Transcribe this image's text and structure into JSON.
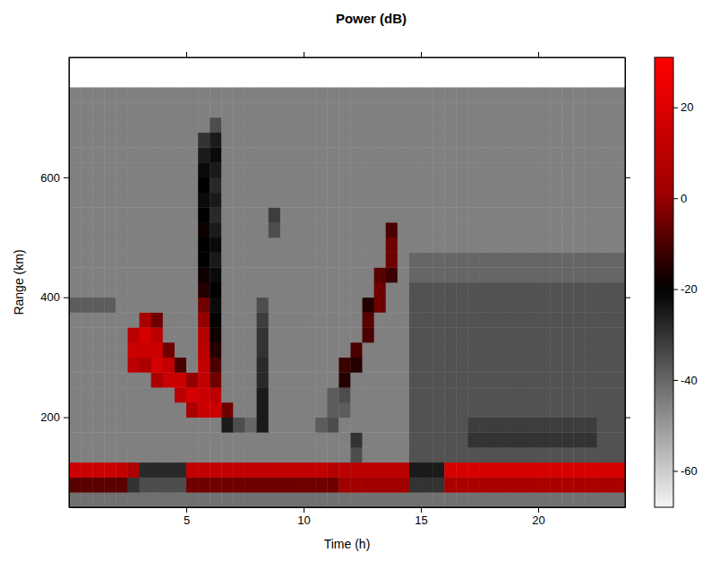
{
  "chart_data": {
    "type": "heatmap",
    "title": "Power (dB)",
    "x_label": "Time (h)",
    "y_label": "Range (km)",
    "xlim": [
      0,
      23.7
    ],
    "ylim": [
      50,
      800
    ],
    "xticks": [
      5,
      10,
      15,
      20
    ],
    "yticks": [
      200,
      400,
      600
    ],
    "x_bins": [
      0,
      0.5,
      1,
      1.5,
      2,
      2.5,
      3,
      3.5,
      4,
      4.5,
      5,
      5.5,
      6,
      6.5,
      7,
      7.5,
      8,
      8.5,
      9,
      9.5,
      10,
      10.5,
      11,
      11.5,
      12,
      12.5,
      13,
      13.5,
      14,
      14.5,
      15,
      15.5,
      16,
      16.5,
      17,
      17.5,
      18,
      18.5,
      19,
      19.5,
      20,
      20.5,
      21,
      21.5,
      22,
      22.5,
      23,
      23.5,
      24
    ],
    "y_bins": [
      50,
      75,
      100,
      125,
      150,
      175,
      200,
      225,
      250,
      275,
      300,
      325,
      350,
      375,
      400,
      425,
      450,
      475,
      500,
      525,
      550,
      575,
      600,
      625,
      650,
      675,
      700,
      725,
      750
    ],
    "cells": [
      [
        -42,
        -42,
        -42,
        -42,
        -42,
        -42,
        -42,
        -42,
        -42,
        -42,
        -42,
        -42,
        -42,
        -42,
        -42,
        -42,
        -42,
        -42,
        -42,
        -42,
        -42,
        -42,
        -42,
        -42,
        -42,
        -42,
        -42,
        -42,
        -42,
        -42,
        -42,
        -42,
        -42,
        -42,
        -42,
        -42,
        -42,
        -42,
        -42,
        -42,
        -42,
        -42,
        -42,
        -42,
        -42,
        -42,
        -42,
        -42
      ],
      [
        -8,
        -8,
        -8,
        -8,
        -8,
        -30,
        -35,
        -35,
        -35,
        -35,
        -5,
        -5,
        -5,
        -5,
        -5,
        -5,
        -5,
        -5,
        -5,
        -5,
        -5,
        -5,
        -5,
        2,
        2,
        2,
        2,
        2,
        2,
        -30,
        -30,
        -30,
        5,
        5,
        5,
        5,
        5,
        5,
        5,
        5,
        5,
        5,
        5,
        5,
        5,
        5,
        5,
        5
      ],
      [
        15,
        15,
        15,
        15,
        12,
        5,
        -28,
        -28,
        -28,
        -28,
        12,
        12,
        12,
        12,
        12,
        12,
        12,
        12,
        12,
        12,
        12,
        12,
        8,
        10,
        10,
        10,
        10,
        10,
        10,
        -25,
        -25,
        -25,
        18,
        18,
        18,
        18,
        18,
        18,
        18,
        18,
        18,
        18,
        18,
        18,
        18,
        18,
        18,
        18
      ],
      [
        -45,
        -45,
        -45,
        -45,
        -45,
        -45,
        -45,
        -45,
        -45,
        -45,
        -45,
        -45,
        -45,
        -45,
        -45,
        -45,
        -45,
        -45,
        -45,
        -45,
        -45,
        -45,
        -45,
        -45,
        -35,
        -45,
        -45,
        -45,
        -45,
        -36,
        -36,
        -36,
        -36,
        -36,
        -36,
        -36,
        -36,
        -36,
        -36,
        -36,
        -36,
        -36,
        -36,
        -36,
        -36,
        -36,
        -36,
        -36
      ],
      [
        -45,
        -45,
        -45,
        -45,
        -45,
        -45,
        -45,
        -45,
        -45,
        -45,
        -45,
        -45,
        -45,
        -45,
        -45,
        -45,
        -45,
        -45,
        -45,
        -45,
        -45,
        -45,
        -45,
        -45,
        -30,
        -45,
        -45,
        -45,
        -45,
        -36,
        -36,
        -36,
        -36,
        -36,
        -30,
        -30,
        -30,
        -30,
        -30,
        -30,
        -30,
        -30,
        -30,
        -30,
        -30,
        -36,
        -36,
        -36
      ],
      [
        -45,
        -45,
        -45,
        -45,
        -45,
        -45,
        -45,
        -45,
        -45,
        -45,
        -45,
        -45,
        -45,
        -25,
        -35,
        -40,
        -25,
        -45,
        -45,
        -45,
        -45,
        -38,
        -35,
        -45,
        -45,
        -45,
        -45,
        -45,
        -45,
        -36,
        -36,
        -36,
        -36,
        -36,
        -32,
        -32,
        -32,
        -32,
        -32,
        -32,
        -32,
        -32,
        -32,
        -32,
        -32,
        -36,
        -36,
        -36
      ],
      [
        -45,
        -45,
        -45,
        -45,
        -45,
        -45,
        -45,
        -45,
        -45,
        -45,
        5,
        15,
        15,
        -5,
        -45,
        -45,
        -25,
        -45,
        -45,
        -45,
        -45,
        -45,
        -38,
        -38,
        -45,
        -45,
        -45,
        -45,
        -45,
        -36,
        -36,
        -36,
        -36,
        -36,
        -36,
        -36,
        -36,
        -36,
        -36,
        -36,
        -36,
        -36,
        -36,
        -36,
        -36,
        -36,
        -36,
        -36
      ],
      [
        -45,
        -45,
        -45,
        -45,
        -45,
        -45,
        -45,
        -45,
        -45,
        10,
        18,
        15,
        10,
        -45,
        -45,
        -45,
        -25,
        -45,
        -45,
        -45,
        -45,
        -45,
        -38,
        -35,
        -45,
        -45,
        -45,
        -45,
        -45,
        -36,
        -36,
        -36,
        -36,
        -36,
        -36,
        -36,
        -36,
        -36,
        -36,
        -36,
        -36,
        -36,
        -36,
        -36,
        -36,
        -36,
        -36,
        -36
      ],
      [
        -45,
        -45,
        -45,
        -45,
        -45,
        -45,
        -45,
        5,
        15,
        15,
        0,
        12,
        -5,
        -45,
        -45,
        -45,
        -28,
        -45,
        -45,
        -45,
        -45,
        -45,
        -45,
        -15,
        -45,
        -45,
        -45,
        -45,
        -45,
        -36,
        -36,
        -36,
        -36,
        -36,
        -36,
        -36,
        -36,
        -36,
        -36,
        -36,
        -36,
        -36,
        -36,
        -36,
        -36,
        -36,
        -36,
        -36
      ],
      [
        -45,
        -45,
        -45,
        -45,
        -45,
        10,
        5,
        18,
        12,
        -10,
        -45,
        12,
        -10,
        -45,
        -45,
        -45,
        -28,
        -45,
        -45,
        -45,
        -45,
        -45,
        -45,
        -12,
        -15,
        -45,
        -45,
        -45,
        -45,
        -36,
        -36,
        -36,
        -36,
        -36,
        -36,
        -36,
        -36,
        -36,
        -36,
        -36,
        -36,
        -36,
        -36,
        -36,
        -36,
        -36,
        -36,
        -36
      ],
      [
        -45,
        -45,
        -45,
        -45,
        -45,
        15,
        15,
        15,
        -5,
        -45,
        -45,
        10,
        -15,
        -45,
        -45,
        -45,
        -30,
        -45,
        -45,
        -45,
        -45,
        -45,
        -45,
        -45,
        -10,
        -45,
        -45,
        -45,
        -45,
        -36,
        -36,
        -36,
        -36,
        -36,
        -36,
        -36,
        -36,
        -36,
        -36,
        -36,
        -36,
        -36,
        -36,
        -36,
        -36,
        -36,
        -36,
        -36
      ],
      [
        -45,
        -45,
        -45,
        -45,
        -45,
        10,
        18,
        10,
        -45,
        -45,
        -45,
        8,
        -18,
        -45,
        -45,
        -45,
        -30,
        -45,
        -45,
        -45,
        -45,
        -45,
        -45,
        -45,
        -45,
        -10,
        -45,
        -45,
        -45,
        -36,
        -36,
        -36,
        -36,
        -36,
        -36,
        -36,
        -36,
        -36,
        -36,
        -36,
        -36,
        -36,
        -36,
        -36,
        -36,
        -36,
        -36,
        -36
      ],
      [
        -45,
        -45,
        -45,
        -45,
        -45,
        -45,
        5,
        -5,
        -45,
        -45,
        -45,
        0,
        -20,
        -45,
        -45,
        -45,
        -32,
        -45,
        -45,
        -45,
        -45,
        -45,
        -45,
        -45,
        -45,
        -8,
        -45,
        -45,
        -45,
        -36,
        -36,
        -36,
        -36,
        -36,
        -36,
        -36,
        -36,
        -36,
        -36,
        -36,
        -36,
        -36,
        -36,
        -36,
        -36,
        -36,
        -36,
        -36
      ],
      [
        -38,
        -38,
        -38,
        -38,
        -45,
        -45,
        -45,
        -45,
        -45,
        -45,
        -45,
        -5,
        -22,
        -45,
        -45,
        -45,
        -35,
        -45,
        -45,
        -45,
        -45,
        -45,
        -45,
        -45,
        -45,
        -15,
        -5,
        -45,
        -45,
        -36,
        -36,
        -36,
        -36,
        -36,
        -36,
        -36,
        -36,
        -36,
        -36,
        -36,
        -36,
        -36,
        -36,
        -36,
        -36,
        -36,
        -36,
        -36
      ],
      [
        -45,
        -45,
        -45,
        -45,
        -45,
        -45,
        -45,
        -45,
        -45,
        -45,
        -45,
        -15,
        -20,
        -45,
        -45,
        -45,
        -45,
        -45,
        -45,
        -45,
        -45,
        -45,
        -45,
        -45,
        -45,
        -45,
        -5,
        -45,
        -45,
        -36,
        -36,
        -36,
        -36,
        -36,
        -36,
        -36,
        -36,
        -36,
        -36,
        -36,
        -36,
        -36,
        -36,
        -36,
        -36,
        -36,
        -36,
        -36
      ],
      [
        -45,
        -45,
        -45,
        -45,
        -45,
        -45,
        -45,
        -45,
        -45,
        -45,
        -45,
        -18,
        -22,
        -45,
        -45,
        -45,
        -45,
        -45,
        -45,
        -45,
        -45,
        -45,
        -45,
        -45,
        -45,
        -45,
        -8,
        -12,
        -45,
        -40,
        -40,
        -40,
        -40,
        -40,
        -40,
        -40,
        -40,
        -40,
        -40,
        -40,
        -40,
        -40,
        -40,
        -40,
        -40,
        -40,
        -40,
        -40
      ],
      [
        -45,
        -45,
        -45,
        -45,
        -45,
        -45,
        -45,
        -45,
        -45,
        -45,
        -45,
        -20,
        -25,
        -45,
        -45,
        -45,
        -45,
        -45,
        -45,
        -45,
        -45,
        -45,
        -45,
        -45,
        -45,
        -45,
        -45,
        -5,
        -45,
        -40,
        -40,
        -40,
        -40,
        -40,
        -40,
        -40,
        -40,
        -40,
        -40,
        -40,
        -40,
        -40,
        -40,
        -40,
        -40,
        -40,
        -40,
        -40
      ],
      [
        -45,
        -45,
        -45,
        -45,
        -45,
        -45,
        -45,
        -45,
        -45,
        -45,
        -45,
        -20,
        -22,
        -45,
        -45,
        -45,
        -45,
        -45,
        -45,
        -45,
        -45,
        -45,
        -45,
        -45,
        -45,
        -45,
        -45,
        -5,
        -45,
        -45,
        -45,
        -45,
        -45,
        -45,
        -45,
        -45,
        -45,
        -45,
        -45,
        -45,
        -45,
        -45,
        -45,
        -45,
        -45,
        -45,
        -45,
        -45
      ],
      [
        -45,
        -45,
        -45,
        -45,
        -45,
        -45,
        -45,
        -45,
        -45,
        -45,
        -45,
        -18,
        -25,
        -45,
        -45,
        -45,
        -45,
        -35,
        -45,
        -45,
        -45,
        -45,
        -45,
        -45,
        -45,
        -45,
        -45,
        -10,
        -45,
        -45,
        -45,
        -45,
        -45,
        -45,
        -45,
        -45,
        -45,
        -45,
        -45,
        -45,
        -45,
        -45,
        -45,
        -45,
        -45,
        -45,
        -45,
        -45
      ],
      [
        -45,
        -45,
        -45,
        -45,
        -45,
        -45,
        -45,
        -45,
        -45,
        -45,
        -45,
        -20,
        -28,
        -45,
        -45,
        -45,
        -45,
        -32,
        -45,
        -45,
        -45,
        -45,
        -45,
        -45,
        -45,
        -45,
        -45,
        -45,
        -45,
        -45,
        -45,
        -45,
        -45,
        -45,
        -45,
        -45,
        -45,
        -45,
        -45,
        -45,
        -45,
        -45,
        -45,
        -45,
        -45,
        -45,
        -45,
        -45
      ],
      [
        -45,
        -45,
        -45,
        -45,
        -45,
        -45,
        -45,
        -45,
        -45,
        -45,
        -45,
        -22,
        -25,
        -45,
        -45,
        -45,
        -45,
        -45,
        -45,
        -45,
        -45,
        -45,
        -45,
        -45,
        -45,
        -45,
        -45,
        -45,
        -45,
        -45,
        -45,
        -45,
        -45,
        -45,
        -45,
        -45,
        -45,
        -45,
        -45,
        -45,
        -45,
        -45,
        -45,
        -45,
        -45,
        -45,
        -45,
        -45
      ],
      [
        -45,
        -45,
        -45,
        -45,
        -45,
        -45,
        -45,
        -45,
        -45,
        -45,
        -45,
        -20,
        -28,
        -45,
        -45,
        -45,
        -45,
        -45,
        -45,
        -45,
        -45,
        -45,
        -45,
        -45,
        -45,
        -45,
        -45,
        -45,
        -45,
        -45,
        -45,
        -45,
        -45,
        -45,
        -45,
        -45,
        -45,
        -45,
        -45,
        -45,
        -45,
        -45,
        -45,
        -45,
        -45,
        -45,
        -45,
        -45
      ],
      [
        -45,
        -45,
        -45,
        -45,
        -45,
        -45,
        -45,
        -45,
        -45,
        -45,
        -45,
        -22,
        -25,
        -45,
        -45,
        -45,
        -45,
        -45,
        -45,
        -45,
        -45,
        -45,
        -45,
        -45,
        -45,
        -45,
        -45,
        -45,
        -45,
        -45,
        -45,
        -45,
        -45,
        -45,
        -45,
        -45,
        -45,
        -45,
        -45,
        -45,
        -45,
        -45,
        -45,
        -45,
        -45,
        -45,
        -45,
        -45
      ],
      [
        -45,
        -45,
        -45,
        -45,
        -45,
        -45,
        -45,
        -45,
        -45,
        -45,
        -45,
        -25,
        -22,
        -45,
        -45,
        -45,
        -45,
        -45,
        -45,
        -45,
        -45,
        -45,
        -45,
        -45,
        -45,
        -45,
        -45,
        -45,
        -45,
        -45,
        -45,
        -45,
        -45,
        -45,
        -45,
        -45,
        -45,
        -45,
        -45,
        -45,
        -45,
        -45,
        -45,
        -45,
        -45,
        -45,
        -45,
        -45
      ],
      [
        -45,
        -45,
        -45,
        -45,
        -45,
        -45,
        -45,
        -45,
        -45,
        -45,
        -45,
        -30,
        -25,
        -45,
        -45,
        -45,
        -45,
        -45,
        -45,
        -45,
        -45,
        -45,
        -45,
        -45,
        -45,
        -45,
        -45,
        -45,
        -45,
        -45,
        -45,
        -45,
        -45,
        -45,
        -45,
        -45,
        -45,
        -45,
        -45,
        -45,
        -45,
        -45,
        -45,
        -45,
        -45,
        -45,
        -45,
        -45
      ],
      [
        -45,
        -45,
        -45,
        -45,
        -45,
        -45,
        -45,
        -45,
        -45,
        -45,
        -45,
        -45,
        -35,
        -45,
        -45,
        -45,
        -45,
        -45,
        -45,
        -45,
        -45,
        -45,
        -45,
        -45,
        -45,
        -45,
        -45,
        -45,
        -45,
        -45,
        -45,
        -45,
        -45,
        -45,
        -45,
        -45,
        -45,
        -45,
        -45,
        -45,
        -45,
        -45,
        -45,
        -45,
        -45,
        -45,
        -45,
        -45
      ],
      [
        -45,
        -45,
        -45,
        -45,
        -45,
        -45,
        -45,
        -45,
        -45,
        -45,
        -45,
        -45,
        -45,
        -45,
        -45,
        -45,
        -45,
        -45,
        -45,
        -45,
        -45,
        -45,
        -45,
        -45,
        -45,
        -45,
        -45,
        -45,
        -45,
        -45,
        -45,
        -45,
        -45,
        -45,
        -45,
        -45,
        -45,
        -45,
        -45,
        -45,
        -45,
        -45,
        -45,
        -45,
        -45,
        -45,
        -45,
        -45
      ],
      [
        -45,
        -45,
        -45,
        -45,
        -45,
        -45,
        -45,
        -45,
        -45,
        -45,
        -45,
        -45,
        -45,
        -45,
        -45,
        -45,
        -45,
        -45,
        -45,
        -45,
        -45,
        -45,
        -45,
        -45,
        -45,
        -45,
        -45,
        -45,
        -45,
        -45,
        -45,
        -45,
        -45,
        -45,
        -45,
        -45,
        -45,
        -45,
        -45,
        -45,
        -45,
        -45,
        -45,
        -45,
        -45,
        -45,
        -45,
        -45
      ]
    ],
    "colorbar": {
      "range": [
        -68,
        31
      ],
      "ticks": [
        -60,
        -40,
        -20,
        0,
        20
      ]
    }
  }
}
